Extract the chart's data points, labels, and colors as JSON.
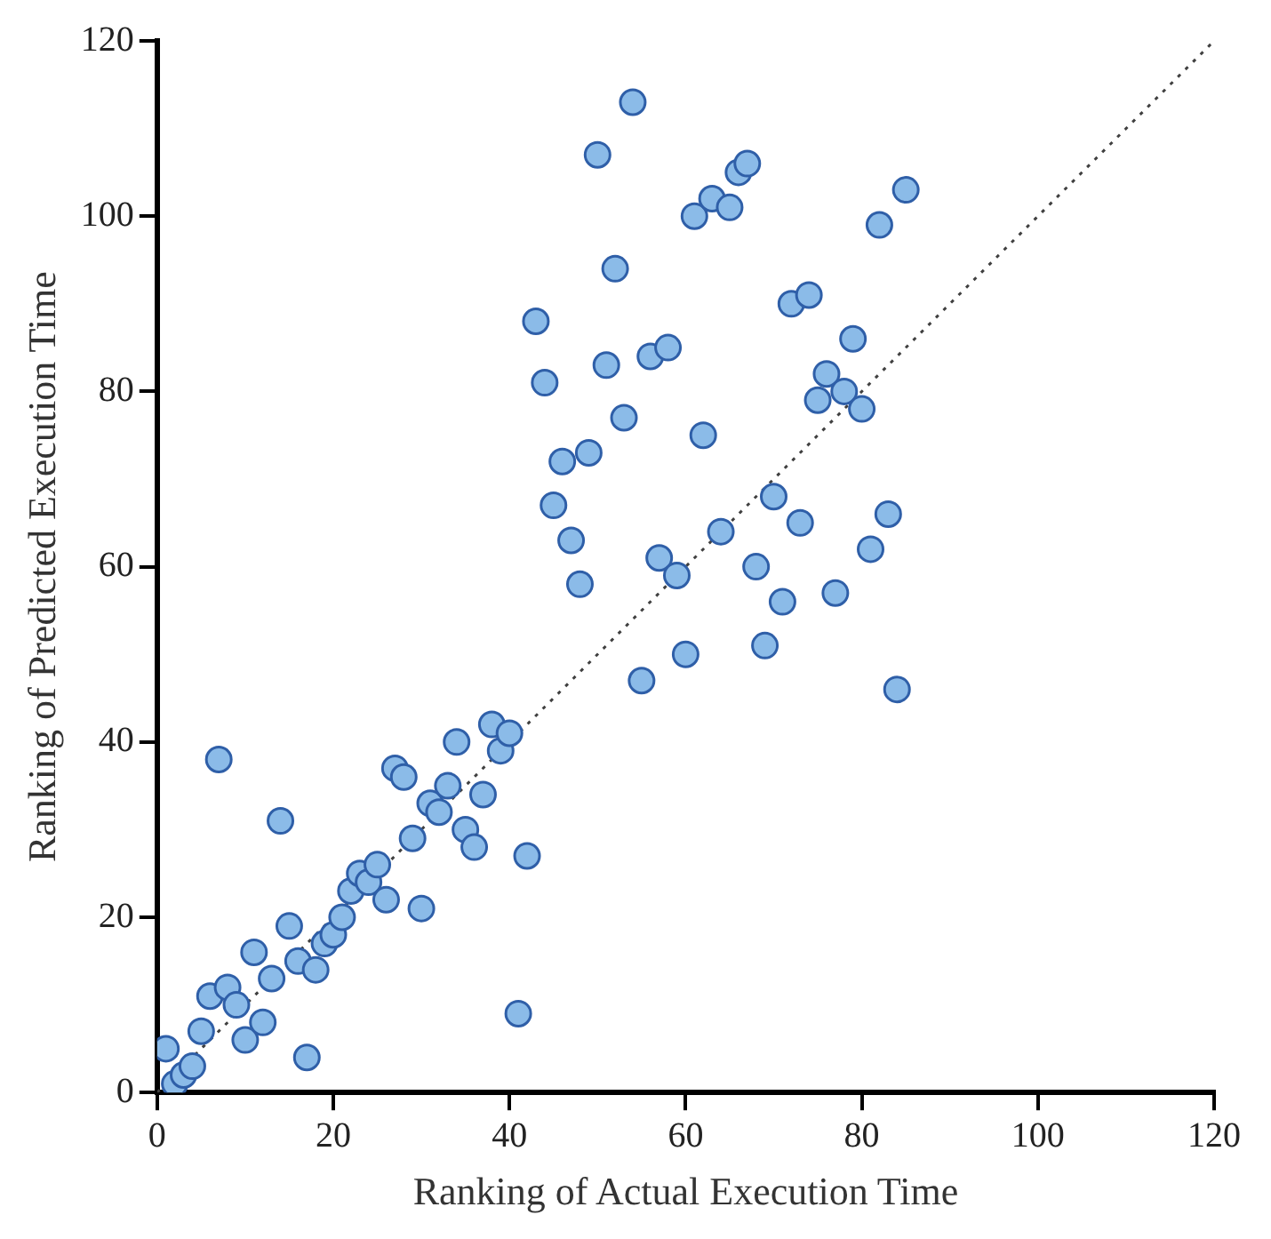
{
  "chart_data": {
    "type": "scatter",
    "xlabel": "Ranking of Actual Execution Time",
    "ylabel": "Ranking of Predicted Execution Time",
    "xlim": [
      0,
      120
    ],
    "ylim": [
      0,
      120
    ],
    "xticks": [
      0,
      20,
      40,
      60,
      80,
      100,
      120
    ],
    "yticks": [
      0,
      20,
      40,
      60,
      80,
      100,
      120
    ],
    "grid": false,
    "legend": false,
    "marker": "circle",
    "series": [
      {
        "color": "#8bbbe8",
        "x": [
          1,
          2,
          3,
          4,
          5,
          6,
          7,
          8,
          9,
          10,
          11,
          12,
          13,
          14,
          15,
          16,
          17,
          18,
          19,
          20,
          21,
          22,
          23,
          24,
          25,
          26,
          27,
          28,
          29,
          30,
          31,
          32,
          33,
          34,
          35,
          36,
          37,
          38,
          39,
          40,
          41,
          42,
          43,
          44,
          45,
          46,
          47,
          48,
          49,
          50,
          51,
          52,
          53,
          54,
          55,
          56,
          57,
          58,
          59,
          60,
          61,
          62,
          63,
          64,
          65,
          66,
          67,
          68,
          69,
          70,
          71,
          72,
          73,
          74,
          75,
          76,
          77,
          78,
          79,
          80,
          81,
          82,
          83,
          84,
          85
        ],
        "values": [
          5,
          1,
          2,
          3,
          7,
          11,
          38,
          12,
          10,
          6,
          16,
          8,
          13,
          31,
          19,
          15,
          4,
          14,
          17,
          18,
          20,
          23,
          25,
          24,
          26,
          22,
          37,
          36,
          29,
          21,
          33,
          32,
          35,
          40,
          30,
          28,
          34,
          42,
          39,
          41,
          9,
          27,
          88,
          81,
          67,
          72,
          63,
          58,
          73,
          107,
          83,
          94,
          77,
          113,
          47,
          84,
          61,
          85,
          59,
          50,
          100,
          75,
          102,
          64,
          101,
          105,
          106,
          60,
          51,
          68,
          56,
          90,
          65,
          91,
          79,
          82,
          57,
          80,
          86,
          78,
          62,
          99,
          66,
          46,
          103
        ]
      },
      {
        "type": "line",
        "color": "#404040",
        "line_style": "dotted",
        "marker": "none",
        "x": [
          0,
          120
        ],
        "values": [
          0,
          120
        ]
      }
    ]
  }
}
